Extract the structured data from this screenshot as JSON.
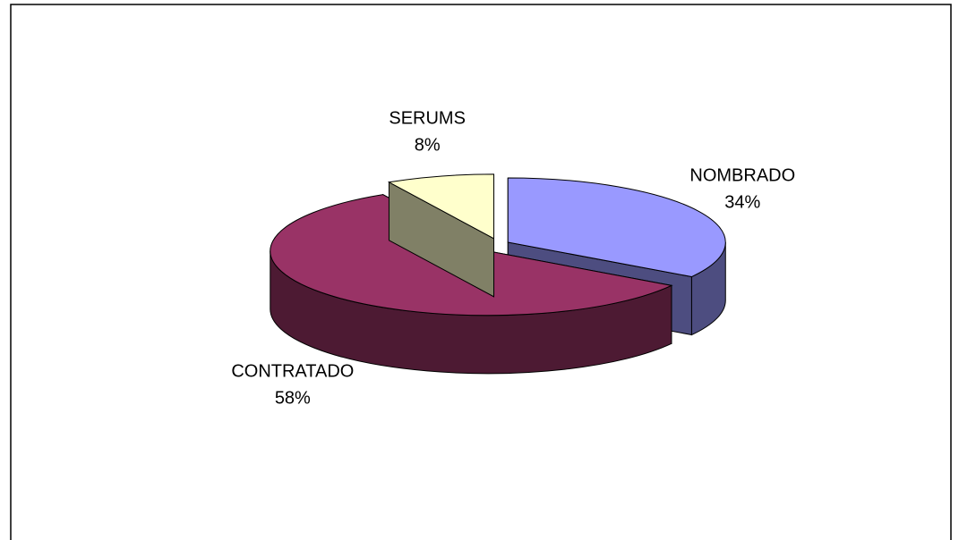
{
  "chart_data": {
    "type": "pie",
    "categories": [
      "NOMBRADO",
      "CONTRATADO",
      "SERUMS"
    ],
    "values": [
      34,
      58,
      8
    ],
    "value_labels": [
      "34%",
      "58%",
      "8%"
    ],
    "colors": [
      "#9999ff",
      "#993366",
      "#ffffcc"
    ]
  }
}
